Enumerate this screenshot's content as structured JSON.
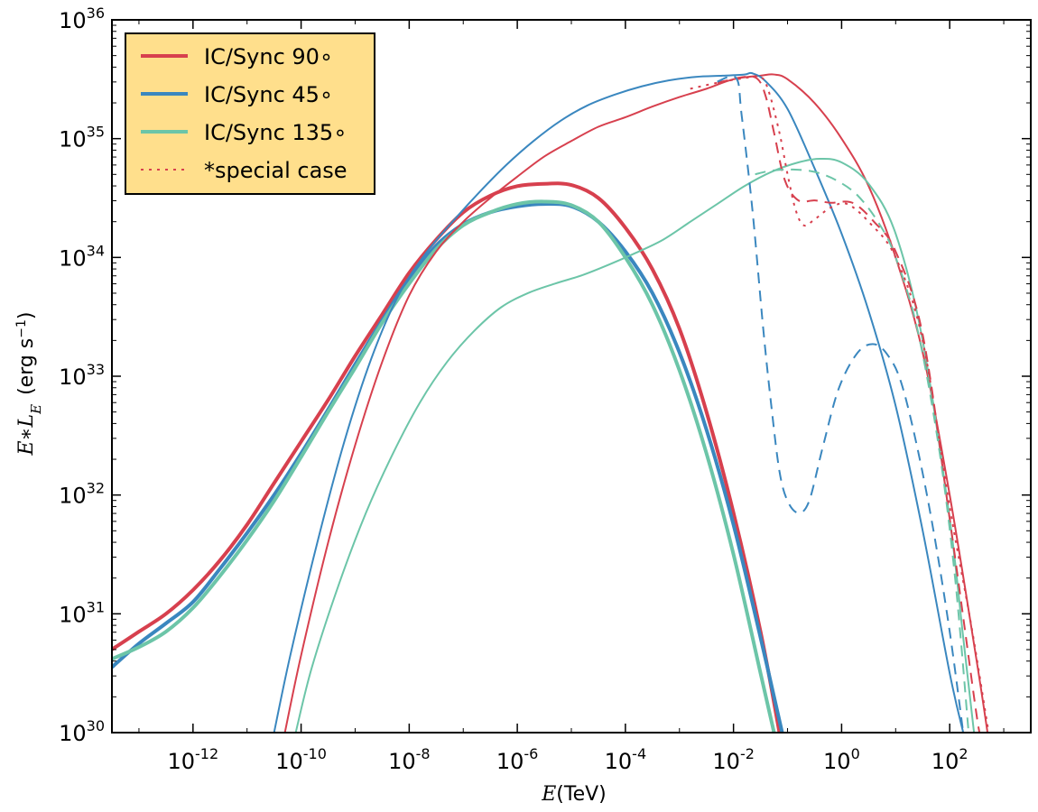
{
  "chart_data": {
    "type": "line",
    "xscale": "log",
    "yscale": "log",
    "xlim_log10": [
      -13.5,
      3.5
    ],
    "ylim_log10": [
      30,
      36
    ],
    "xlabel": {
      "var": "E",
      "unit": "(TeV)"
    },
    "ylabel": {
      "var": "E∗L",
      "sub": "E",
      "unit": "(erg s",
      "unit_exp": "−1",
      "unit_close": ")"
    },
    "x_ticks": [
      {
        "base": "10",
        "exp": "-12",
        "log": -12
      },
      {
        "base": "10",
        "exp": "-10",
        "log": -10
      },
      {
        "base": "10",
        "exp": "-8",
        "log": -8
      },
      {
        "base": "10",
        "exp": "-6",
        "log": -6
      },
      {
        "base": "10",
        "exp": "-4",
        "log": -4
      },
      {
        "base": "10",
        "exp": "-2",
        "log": -2
      },
      {
        "base": "10",
        "exp": "0",
        "log": 0
      },
      {
        "base": "10",
        "exp": "2",
        "log": 2
      }
    ],
    "y_ticks": [
      {
        "base": "10",
        "exp": "30",
        "log": 30
      },
      {
        "base": "10",
        "exp": "31",
        "log": 31
      },
      {
        "base": "10",
        "exp": "32",
        "log": 32
      },
      {
        "base": "10",
        "exp": "33",
        "log": 33
      },
      {
        "base": "10",
        "exp": "34",
        "log": 34
      },
      {
        "base": "10",
        "exp": "35",
        "log": 35
      },
      {
        "base": "10",
        "exp": "36",
        "log": 36
      }
    ],
    "legend": {
      "location": "upper-left",
      "background": "#FFDF8C",
      "entries": [
        {
          "label": "IC/Sync 90∘",
          "color": "#D7404E",
          "style": "solid"
        },
        {
          "label": "IC/Sync 45∘",
          "color": "#3A87BF",
          "style": "solid"
        },
        {
          "label": "IC/Sync 135∘",
          "color": "#6CC5A8",
          "style": "solid"
        },
        {
          "label": "*special case",
          "color": "#D7404E",
          "style": "dotted"
        }
      ]
    },
    "series": [
      {
        "name": "sync-90",
        "color": "#D7404E",
        "width": 4,
        "dash": "",
        "points": [
          [
            -13.5,
            30.7
          ],
          [
            -13,
            30.85
          ],
          [
            -12.5,
            31.0
          ],
          [
            -12,
            31.2
          ],
          [
            -11.5,
            31.45
          ],
          [
            -11,
            31.75
          ],
          [
            -10.5,
            32.1
          ],
          [
            -10,
            32.45
          ],
          [
            -9.5,
            32.8
          ],
          [
            -9,
            33.17
          ],
          [
            -8.5,
            33.52
          ],
          [
            -8,
            33.87
          ],
          [
            -7.5,
            34.15
          ],
          [
            -7,
            34.38
          ],
          [
            -6.5,
            34.52
          ],
          [
            -6,
            34.6
          ],
          [
            -5.5,
            34.62
          ],
          [
            -5,
            34.61
          ],
          [
            -4.5,
            34.5
          ],
          [
            -4,
            34.25
          ],
          [
            -3.5,
            33.9
          ],
          [
            -3,
            33.4
          ],
          [
            -2.5,
            32.7
          ],
          [
            -2,
            31.85
          ],
          [
            -1.5,
            30.85
          ],
          [
            -1.15,
            30.0
          ]
        ]
      },
      {
        "name": "sync-45",
        "color": "#3A87BF",
        "width": 4,
        "dash": "",
        "points": [
          [
            -13.5,
            30.55
          ],
          [
            -13,
            30.75
          ],
          [
            -12.5,
            30.92
          ],
          [
            -12,
            31.1
          ],
          [
            -11.5,
            31.38
          ],
          [
            -11,
            31.68
          ],
          [
            -10.5,
            32.0
          ],
          [
            -10,
            32.35
          ],
          [
            -9.5,
            32.72
          ],
          [
            -9,
            33.1
          ],
          [
            -8.5,
            33.47
          ],
          [
            -8,
            33.82
          ],
          [
            -7.5,
            34.1
          ],
          [
            -7,
            34.28
          ],
          [
            -6.5,
            34.38
          ],
          [
            -6,
            34.43
          ],
          [
            -5.5,
            34.45
          ],
          [
            -5,
            34.43
          ],
          [
            -4.5,
            34.3
          ],
          [
            -4,
            34.05
          ],
          [
            -3.5,
            33.7
          ],
          [
            -3,
            33.2
          ],
          [
            -2.5,
            32.55
          ],
          [
            -2,
            31.75
          ],
          [
            -1.5,
            30.8
          ],
          [
            -1.1,
            30.0
          ]
        ]
      },
      {
        "name": "sync-135",
        "color": "#6CC5A8",
        "width": 4,
        "dash": "",
        "points": [
          [
            -13.5,
            30.62
          ],
          [
            -13,
            30.72
          ],
          [
            -12.5,
            30.85
          ],
          [
            -12,
            31.05
          ],
          [
            -11.5,
            31.32
          ],
          [
            -11,
            31.62
          ],
          [
            -10.5,
            31.95
          ],
          [
            -10,
            32.32
          ],
          [
            -9.5,
            32.7
          ],
          [
            -9,
            33.07
          ],
          [
            -8.5,
            33.45
          ],
          [
            -8,
            33.78
          ],
          [
            -7.5,
            34.07
          ],
          [
            -7,
            34.27
          ],
          [
            -6.5,
            34.38
          ],
          [
            -6,
            34.45
          ],
          [
            -5.5,
            34.47
          ],
          [
            -5,
            34.44
          ],
          [
            -4.5,
            34.3
          ],
          [
            -4,
            34.0
          ],
          [
            -3.5,
            33.6
          ],
          [
            -3,
            33.05
          ],
          [
            -2.5,
            32.35
          ],
          [
            -2,
            31.5
          ],
          [
            -1.5,
            30.5
          ],
          [
            -1.25,
            30.0
          ]
        ]
      },
      {
        "name": "ic-90",
        "color": "#D7404E",
        "width": 2,
        "dash": "",
        "points": [
          [
            -10.3,
            30.0
          ],
          [
            -10,
            30.65
          ],
          [
            -9.5,
            31.6
          ],
          [
            -9,
            32.42
          ],
          [
            -8.5,
            33.12
          ],
          [
            -8,
            33.68
          ],
          [
            -7.5,
            34.05
          ],
          [
            -7,
            34.3
          ],
          [
            -6.5,
            34.5
          ],
          [
            -6,
            34.68
          ],
          [
            -5.5,
            34.85
          ],
          [
            -5,
            34.98
          ],
          [
            -4.5,
            35.1
          ],
          [
            -4,
            35.18
          ],
          [
            -3.5,
            35.27
          ],
          [
            -3,
            35.35
          ],
          [
            -2.5,
            35.42
          ],
          [
            -2,
            35.5
          ],
          [
            -1.5,
            35.53
          ],
          [
            -1.25,
            35.54
          ],
          [
            -1,
            35.5
          ],
          [
            -0.5,
            35.3
          ],
          [
            0,
            35.0
          ],
          [
            0.5,
            34.6
          ],
          [
            1,
            34.0
          ],
          [
            1.5,
            33.2
          ],
          [
            2,
            32.0
          ],
          [
            2.5,
            30.6
          ],
          [
            2.7,
            30.0
          ]
        ]
      },
      {
        "name": "ic-45",
        "color": "#3A87BF",
        "width": 2,
        "dash": "",
        "points": [
          [
            -10.5,
            30.0
          ],
          [
            -10.2,
            30.65
          ],
          [
            -9.7,
            31.6
          ],
          [
            -9.2,
            32.45
          ],
          [
            -8.7,
            33.15
          ],
          [
            -8.2,
            33.68
          ],
          [
            -7.7,
            34.03
          ],
          [
            -7.2,
            34.3
          ],
          [
            -6.7,
            34.55
          ],
          [
            -6.2,
            34.78
          ],
          [
            -5.7,
            34.98
          ],
          [
            -5.2,
            35.15
          ],
          [
            -4.7,
            35.28
          ],
          [
            -4.2,
            35.37
          ],
          [
            -3.7,
            35.44
          ],
          [
            -3.2,
            35.49
          ],
          [
            -2.7,
            35.52
          ],
          [
            -2.2,
            35.53
          ],
          [
            -1.8,
            35.54
          ],
          [
            -1.65,
            35.55
          ],
          [
            -1.4,
            35.48
          ],
          [
            -1,
            35.25
          ],
          [
            -0.5,
            34.75
          ],
          [
            0,
            34.2
          ],
          [
            0.5,
            33.55
          ],
          [
            1,
            32.75
          ],
          [
            1.5,
            31.7
          ],
          [
            2,
            30.5
          ],
          [
            2.25,
            30.0
          ]
        ]
      },
      {
        "name": "ic-135",
        "color": "#6CC5A8",
        "width": 2,
        "dash": "",
        "points": [
          [
            -10.1,
            30.0
          ],
          [
            -9.8,
            30.55
          ],
          [
            -9.3,
            31.25
          ],
          [
            -8.8,
            31.85
          ],
          [
            -8.3,
            32.35
          ],
          [
            -7.8,
            32.78
          ],
          [
            -7.3,
            33.12
          ],
          [
            -6.8,
            33.38
          ],
          [
            -6.3,
            33.58
          ],
          [
            -5.8,
            33.7
          ],
          [
            -5.3,
            33.78
          ],
          [
            -4.8,
            33.85
          ],
          [
            -4.3,
            33.94
          ],
          [
            -3.8,
            34.04
          ],
          [
            -3.3,
            34.15
          ],
          [
            -2.8,
            34.3
          ],
          [
            -2.3,
            34.45
          ],
          [
            -1.8,
            34.6
          ],
          [
            -1.3,
            34.72
          ],
          [
            -0.8,
            34.8
          ],
          [
            -0.4,
            34.83
          ],
          [
            0,
            34.8
          ],
          [
            0.5,
            34.62
          ],
          [
            1,
            34.2
          ],
          [
            1.5,
            33.3
          ],
          [
            2,
            31.8
          ],
          [
            2.25,
            30.8
          ],
          [
            2.45,
            30.0
          ]
        ]
      },
      {
        "name": "ic-90-dashed",
        "color": "#D7404E",
        "width": 2,
        "dash": "12,8",
        "points": [
          [
            -2.3,
            35.47
          ],
          [
            -1.8,
            35.52
          ],
          [
            -1.55,
            35.5
          ],
          [
            -1.4,
            35.35
          ],
          [
            -1.25,
            35.05
          ],
          [
            -1.05,
            34.65
          ],
          [
            -0.8,
            34.48
          ],
          [
            -0.5,
            34.48
          ],
          [
            -0.2,
            34.46
          ],
          [
            0.2,
            34.46
          ],
          [
            0.6,
            34.3
          ],
          [
            1,
            34.05
          ],
          [
            1.5,
            33.35
          ],
          [
            2,
            31.8
          ],
          [
            2.45,
            30.3
          ],
          [
            2.55,
            30.0
          ]
        ]
      },
      {
        "name": "ic-45-dashed",
        "color": "#3A87BF",
        "width": 2,
        "dash": "12,8",
        "points": [
          [
            -2.3,
            35.48
          ],
          [
            -1.95,
            35.51
          ],
          [
            -1.85,
            35.2
          ],
          [
            -1.65,
            34.4
          ],
          [
            -1.45,
            33.4
          ],
          [
            -1.3,
            32.75
          ],
          [
            -1.15,
            32.2
          ],
          [
            -1.0,
            31.95
          ],
          [
            -0.8,
            31.85
          ],
          [
            -0.6,
            31.95
          ],
          [
            -0.35,
            32.4
          ],
          [
            -0.05,
            32.9
          ],
          [
            0.3,
            33.2
          ],
          [
            0.6,
            33.27
          ],
          [
            0.85,
            33.18
          ],
          [
            1.1,
            32.95
          ],
          [
            1.4,
            32.4
          ],
          [
            1.7,
            31.7
          ],
          [
            2,
            30.85
          ],
          [
            2.25,
            30.0
          ]
        ]
      },
      {
        "name": "ic-135-dashed",
        "color": "#6CC5A8",
        "width": 2,
        "dash": "12,8",
        "points": [
          [
            -1.6,
            34.7
          ],
          [
            -1.3,
            34.73
          ],
          [
            -0.9,
            34.74
          ],
          [
            -0.5,
            34.72
          ],
          [
            -0.1,
            34.65
          ],
          [
            0.3,
            34.52
          ],
          [
            0.7,
            34.28
          ],
          [
            1,
            34.0
          ],
          [
            1.4,
            33.4
          ],
          [
            1.8,
            32.4
          ],
          [
            2.1,
            31.3
          ],
          [
            2.35,
            30.0
          ]
        ]
      },
      {
        "name": "ic-90-dotted",
        "color": "#D7404E",
        "width": 2,
        "dash": "3,6",
        "points": [
          [
            -2.8,
            35.42
          ],
          [
            -2.3,
            35.47
          ],
          [
            -1.8,
            35.51
          ],
          [
            -1.5,
            35.52
          ],
          [
            -1.35,
            35.4
          ],
          [
            -1.15,
            35.05
          ],
          [
            -1,
            34.7
          ],
          [
            -0.85,
            34.4
          ],
          [
            -0.7,
            34.27
          ],
          [
            -0.5,
            34.32
          ],
          [
            -0.2,
            34.42
          ],
          [
            0.1,
            34.45
          ],
          [
            0.5,
            34.3
          ],
          [
            1,
            34.0
          ],
          [
            1.5,
            33.3
          ],
          [
            2,
            31.9
          ],
          [
            2.4,
            30.9
          ],
          [
            2.65,
            30.2
          ],
          [
            2.72,
            30.0
          ]
        ]
      }
    ]
  }
}
